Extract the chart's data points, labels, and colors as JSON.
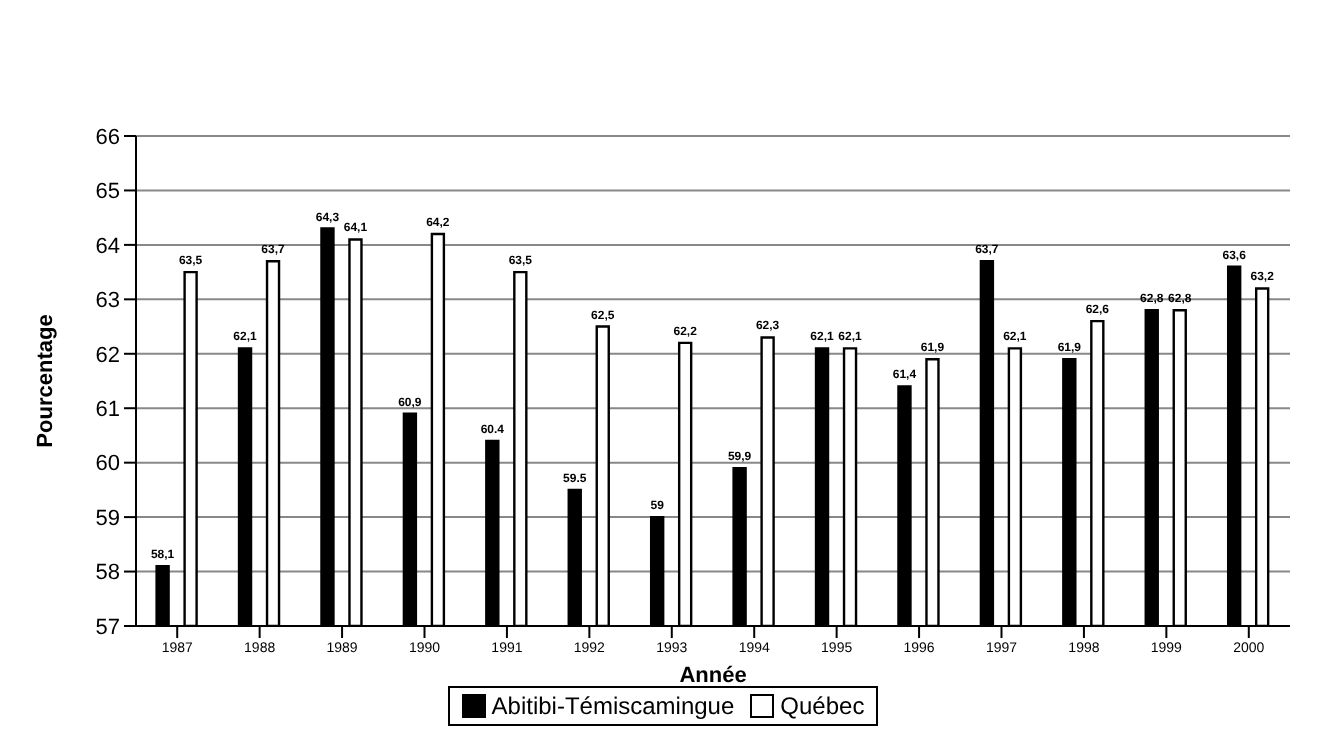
{
  "chart_data": {
    "type": "bar",
    "xlabel": "Année",
    "ylabel": "Pourcentage",
    "categories": [
      "1987",
      "1988",
      "1989",
      "1990",
      "1991",
      "1992",
      "1993",
      "1994",
      "1995",
      "1996",
      "1997",
      "1998",
      "1999",
      "2000"
    ],
    "series": [
      {
        "name": "Abitibi-Témiscamingue",
        "color": "#000000",
        "values": [
          58.1,
          62.1,
          64.3,
          60.9,
          60.4,
          59.5,
          59,
          59.9,
          62.1,
          61.4,
          63.7,
          61.9,
          62.8,
          63.6
        ],
        "value_labels": [
          "58,1",
          "62,1",
          "64,3",
          "60,9",
          "60.4",
          "59.5",
          "59",
          "59,9",
          "62,1",
          "61,4",
          "63,7",
          "61,9",
          "62,8",
          "63,6"
        ]
      },
      {
        "name": "Québec",
        "color": "#ffffff",
        "values": [
          63.5,
          63.7,
          64.1,
          64.2,
          63.5,
          62.5,
          62.2,
          62.3,
          62.1,
          61.9,
          62.1,
          62.6,
          62.8,
          63.2
        ],
        "value_labels": [
          "63,5",
          "63,7",
          "64,1",
          "64,2",
          "63,5",
          "62,5",
          "62,2",
          "62,3",
          "62,1",
          "61,9",
          "62,1",
          "62,6",
          "62,8",
          "63,2"
        ]
      }
    ],
    "ylim": [
      57,
      66
    ],
    "yticks": [
      57,
      58,
      59,
      60,
      61,
      62,
      63,
      64,
      65,
      66
    ],
    "grid": "y",
    "legend": "bottom"
  }
}
